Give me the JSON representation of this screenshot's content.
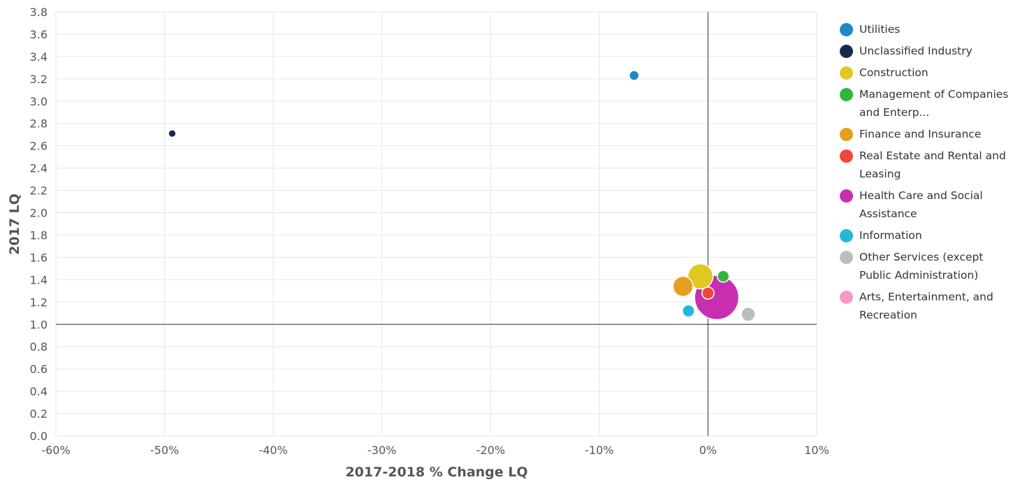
{
  "chart_data": {
    "type": "scatter",
    "subtype": "bubble",
    "xlabel": "2017-2018 % Change LQ",
    "ylabel": "2017 LQ",
    "xlim": [
      -60,
      10
    ],
    "ylim": [
      0,
      3.8
    ],
    "x_ticks": [
      -60,
      -50,
      -40,
      -30,
      -20,
      -10,
      0,
      10
    ],
    "x_tick_labels": [
      "-60%",
      "-50%",
      "-40%",
      "-30%",
      "-20%",
      "-10%",
      "0%",
      "10%"
    ],
    "y_ticks": [
      0.0,
      0.2,
      0.4,
      0.6,
      0.8,
      1.0,
      1.2,
      1.4,
      1.6,
      1.8,
      2.0,
      2.2,
      2.4,
      2.6,
      2.8,
      3.0,
      3.2,
      3.4,
      3.6,
      3.8
    ],
    "y_tick_labels": [
      "0.0",
      "0.2",
      "0.4",
      "0.6",
      "0.8",
      "1.0",
      "1.2",
      "1.4",
      "1.6",
      "1.8",
      "2.0",
      "2.2",
      "2.4",
      "2.6",
      "2.8",
      "3.0",
      "3.2",
      "3.4",
      "3.6",
      "3.8"
    ],
    "reference_lines": {
      "x": 0,
      "y": 1.0
    },
    "grid": true,
    "legend_position": "right",
    "series": [
      {
        "name": "Utilities",
        "color": "#1f88c9",
        "x": -6.8,
        "y": 3.23,
        "size": 1
      },
      {
        "name": "Unclassified Industry",
        "color": "#172a4d",
        "x": -49.3,
        "y": 2.71,
        "size": 0.5
      },
      {
        "name": "Construction",
        "color": "#e0c820",
        "x": -0.7,
        "y": 1.43,
        "size": 9
      },
      {
        "name": "Management of Companies and Enterp...",
        "color": "#2db83d",
        "x": 1.4,
        "y": 1.43,
        "size": 1.6
      },
      {
        "name": "Finance and Insurance",
        "color": "#e6a020",
        "x": -2.3,
        "y": 1.34,
        "size": 5.5
      },
      {
        "name": "Real Estate and Rental and Leasing",
        "color": "#f1463a",
        "x": 0.0,
        "y": 1.28,
        "size": 1.7
      },
      {
        "name": "Health Care and Social Assistance",
        "color": "#c72fb0",
        "x": 0.8,
        "y": 1.24,
        "size": 30
      },
      {
        "name": "Information",
        "color": "#22b8d9",
        "x": -1.8,
        "y": 1.12,
        "size": 1.7
      },
      {
        "name": "Other Services (except Public Administration)",
        "color": "#bdbdbd",
        "x": 3.7,
        "y": 1.09,
        "size": 2.4
      },
      {
        "name": "Arts, Entertainment, and Recreation",
        "color": "#f59ac3",
        "x": null,
        "y": null,
        "size": null
      }
    ]
  }
}
